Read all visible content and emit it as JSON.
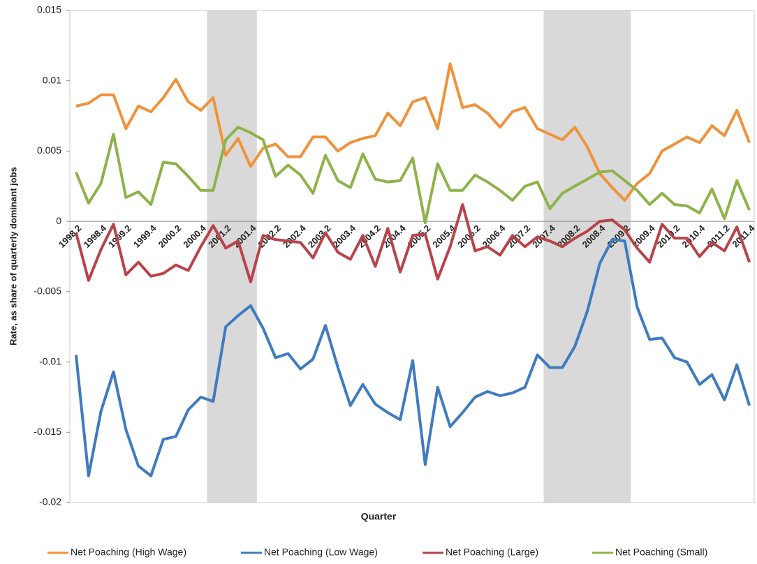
{
  "chart_data": {
    "type": "line",
    "x_label": "Quarter",
    "y_label": "Rate, as share of quarterly dominant jobs",
    "categories": [
      "1998.2",
      null,
      "1998.4",
      null,
      "1999.2",
      null,
      "1999.4",
      null,
      "2000.2",
      null,
      "2000.4",
      null,
      "2001.2",
      null,
      "2001.4",
      null,
      "2002.2",
      null,
      "2002.4",
      null,
      "2003.2",
      null,
      "2003.4",
      null,
      "2004.2",
      null,
      "2004.4",
      null,
      "2005.2",
      null,
      "2005.4",
      null,
      "2006.2",
      null,
      "2006.4",
      null,
      "2007.2",
      null,
      "2007.4",
      null,
      "2008.2",
      null,
      "2008.4",
      null,
      "2009.2",
      null,
      "2009.4",
      null,
      "2010.2",
      null,
      "2010.4",
      null,
      "2011.2",
      null,
      "2011.4"
    ],
    "shaded_ranges": [
      [
        11,
        14
      ],
      [
        38,
        44
      ]
    ],
    "ylim": [
      -0.02,
      0.015
    ],
    "yticks": [
      0.015,
      0.01,
      0.005,
      0,
      -0.005,
      -0.01,
      -0.015,
      -0.02
    ],
    "series": [
      {
        "name": "Net Poaching (High Wage)",
        "color": "#f0923a",
        "values": [
          0.0082,
          0.0084,
          0.009,
          0.009,
          0.0066,
          0.0082,
          0.0078,
          0.0088,
          0.0101,
          0.0085,
          0.0079,
          0.0088,
          0.0047,
          0.0059,
          0.0039,
          0.0052,
          0.0055,
          0.0046,
          0.0046,
          0.006,
          0.006,
          0.005,
          0.0056,
          0.0059,
          0.0061,
          0.0077,
          0.0068,
          0.0085,
          0.0088,
          0.0066,
          0.0112,
          0.0081,
          0.0083,
          0.0077,
          0.0067,
          0.0078,
          0.0081,
          0.0066,
          0.0062,
          0.0058,
          0.0067,
          0.0053,
          0.0034,
          0.0024,
          0.0015,
          0.0027,
          0.0034,
          0.005,
          0.0055,
          0.006,
          0.0056,
          0.0068,
          0.0061,
          0.0079,
          0.0056
        ]
      },
      {
        "name": "Net Poaching (Low Wage)",
        "color": "#3f7bbf",
        "values": [
          -0.0095,
          -0.0181,
          -0.0135,
          -0.0107,
          -0.0148,
          -0.0174,
          -0.0181,
          -0.0155,
          -0.0153,
          -0.0134,
          -0.0125,
          -0.0128,
          -0.0075,
          -0.0067,
          -0.006,
          -0.0076,
          -0.0097,
          -0.0094,
          -0.0105,
          -0.0098,
          -0.0074,
          -0.0104,
          -0.0131,
          -0.0116,
          -0.013,
          -0.0136,
          -0.0141,
          -0.0099,
          -0.0173,
          -0.0118,
          -0.0146,
          -0.0136,
          -0.0125,
          -0.0121,
          -0.0124,
          -0.0122,
          -0.0118,
          -0.0095,
          -0.0104,
          -0.0104,
          -0.0089,
          -0.0064,
          -0.003,
          -0.0013,
          -0.0014,
          -0.0061,
          -0.0084,
          -0.0083,
          -0.0097,
          -0.01,
          -0.0116,
          -0.0109,
          -0.0127,
          -0.0102,
          -0.0131
        ]
      },
      {
        "name": "Net Poaching (Large)",
        "color": "#b9434a",
        "values": [
          -0.0008,
          -0.0042,
          -0.002,
          -0.0002,
          -0.0038,
          -0.0029,
          -0.0039,
          -0.0037,
          -0.0031,
          -0.0035,
          -0.0018,
          -0.0003,
          -0.0019,
          -0.0014,
          -0.0043,
          -0.001,
          -0.0013,
          -0.0014,
          -0.0015,
          -0.0026,
          -0.0008,
          -0.0022,
          -0.0027,
          -0.001,
          -0.0032,
          -0.0005,
          -0.0036,
          -0.001,
          -0.0009,
          -0.0041,
          -0.0018,
          0.0012,
          -0.0021,
          -0.0018,
          -0.0024,
          -0.001,
          -0.0018,
          -0.0011,
          -0.0014,
          -0.0018,
          -0.0012,
          -0.0007,
          0.0,
          0.0001,
          -0.0006,
          -0.0019,
          -0.0029,
          -0.0002,
          -0.0012,
          -0.0012,
          -0.0025,
          -0.0015,
          -0.0021,
          -0.0004,
          -0.0029
        ]
      },
      {
        "name": "Net Poaching (Small)",
        "color": "#8db34a",
        "values": [
          0.0035,
          0.0013,
          0.0027,
          0.0062,
          0.0017,
          0.0021,
          0.0012,
          0.0042,
          0.0041,
          0.0032,
          0.0022,
          0.0022,
          0.0058,
          0.0067,
          0.0063,
          0.0058,
          0.0032,
          0.004,
          0.0033,
          0.002,
          0.0047,
          0.0029,
          0.0024,
          0.0048,
          0.003,
          0.0028,
          0.0029,
          0.0045,
          -0.0001,
          0.0041,
          0.0022,
          0.0022,
          0.0033,
          0.0028,
          0.0022,
          0.0015,
          0.0025,
          0.0028,
          0.0009,
          0.002,
          0.0025,
          0.003,
          0.0035,
          0.0036,
          0.0029,
          0.0022,
          0.0012,
          0.002,
          0.0012,
          0.0011,
          0.0006,
          0.0023,
          0.0002,
          0.0029,
          0.0008
        ]
      }
    ]
  }
}
